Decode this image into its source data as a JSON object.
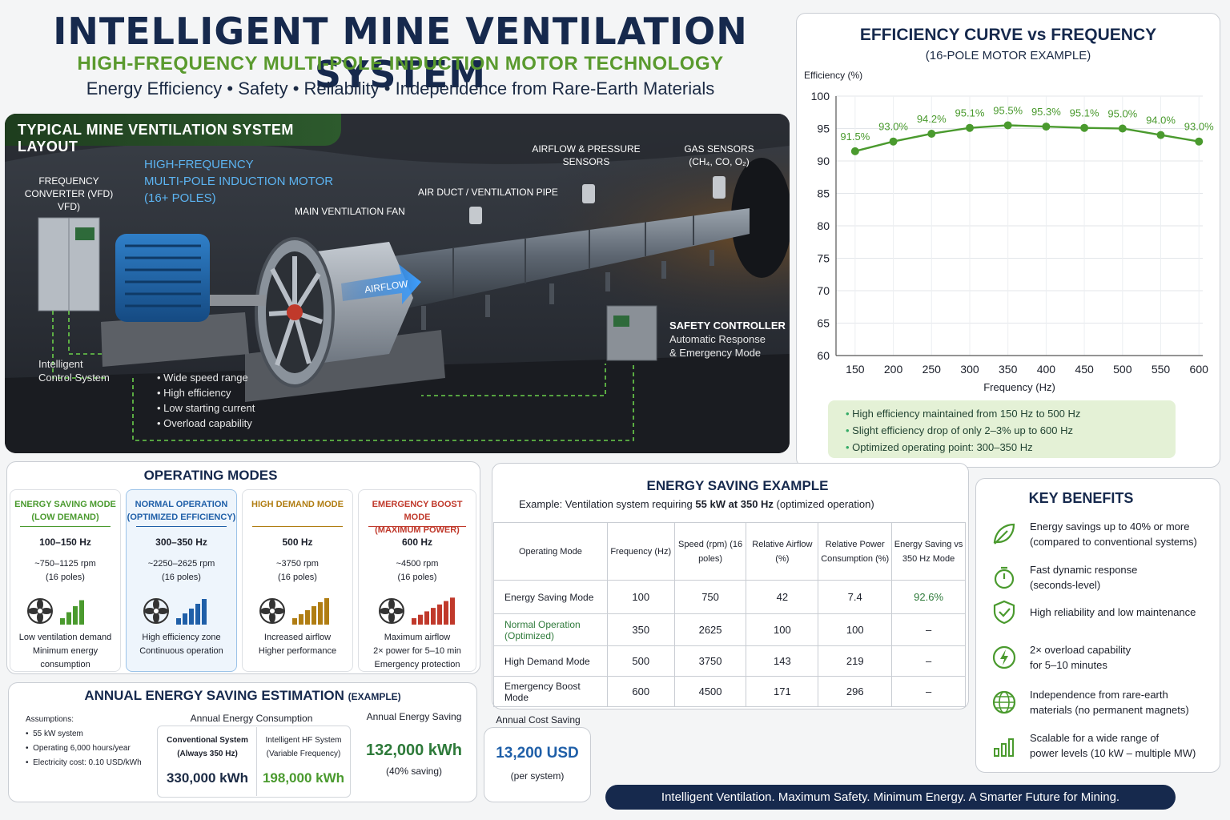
{
  "header": {
    "title": "INTELLIGENT MINE VENTILATION SYSTEM",
    "subtitle": "HIGH-FREQUENCY MULTI-POLE INDUCTION MOTOR TECHNOLOGY",
    "tagline": "Energy Efficiency • Safety • Reliability • Independence from Rare-Earth Materials"
  },
  "layout_panel": {
    "title": "TYPICAL MINE VENTILATION SYSTEM LAYOUT",
    "vfd_label": [
      "FREQUENCY",
      "CONVERTER (VFD)",
      "VFD)"
    ],
    "motor_label": [
      "HIGH-FREQUENCY",
      "MULTI-POLE INDUCTION MOTOR",
      "(16+ POLES)"
    ],
    "fan_label": "MAIN VENTILATION FAN",
    "duct_label": "AIR DUCT / VENTILATION PIPE",
    "airflow_sensors": [
      "AIRFLOW & PRESSURE",
      "SENSORS"
    ],
    "gas_sensors": [
      "GAS SENSORS",
      "(CH₄, CO, O₂)"
    ],
    "airflow_arrow": "AIRFLOW",
    "safety_controller": [
      "SAFETY CONTROLLER",
      "Automatic Response",
      "& Emergency Mode"
    ],
    "control_system": [
      "Intelligent",
      "Control System"
    ],
    "features": [
      "Wide speed range",
      "High efficiency",
      "Low starting current",
      "Overload capability"
    ]
  },
  "chart": {
    "title": "EFFICIENCY CURVE vs FREQUENCY",
    "subtitle": "(16-POLE MOTOR EXAMPLE)",
    "notes": [
      "High efficiency maintained from 150 Hz to 500 Hz",
      "Slight efficiency drop of only 2–3% up to 600 Hz",
      "Optimized operating point: 300–350 Hz"
    ]
  },
  "chart_data": {
    "type": "line",
    "xlabel": "Frequency (Hz)",
    "ylabel": "Efficiency (%)",
    "x": [
      150,
      200,
      250,
      300,
      350,
      400,
      450,
      500,
      550,
      600
    ],
    "series": [
      {
        "values": [
          91.5,
          93.0,
          94.2,
          95.1,
          95.5,
          95.3,
          95.1,
          95.0,
          94.0,
          93.0
        ]
      }
    ],
    "data_labels": [
      "91.5%",
      "93.0%",
      "94.2%",
      "95.1%",
      "95.5%",
      "95.3%",
      "95.1%",
      "95.0%",
      "94.0%",
      "93.0%"
    ],
    "x_ticks": [
      "150",
      "200",
      "250",
      "300",
      "350",
      "400",
      "450",
      "500",
      "550",
      "600"
    ],
    "y_ticks": [
      "100",
      "95",
      "90",
      "85",
      "80",
      "75",
      "70",
      "65",
      "60"
    ],
    "ylim": [
      60,
      100
    ],
    "xlim": [
      150,
      600
    ],
    "grid": true,
    "color": "#4a9a2e"
  },
  "modes": {
    "title": "OPERATING MODES",
    "items": [
      {
        "title": [
          "ENERGY SAVING MODE",
          "(LOW DEMAND)"
        ],
        "freq": "100–150 Hz",
        "rpm": [
          "~750–1125 rpm",
          "(16 poles)"
        ],
        "desc": [
          "Low ventilation demand",
          "Minimum energy",
          "consumption"
        ],
        "color": "#4a9a2e",
        "bg": "#fff"
      },
      {
        "title": [
          "NORMAL OPERATION",
          "(OPTIMIZED EFFICIENCY)"
        ],
        "freq": "300–350 Hz",
        "rpm": [
          "~2250–2625 rpm",
          "(16 poles)"
        ],
        "desc": [
          "High efficiency zone",
          "Continuous operation"
        ],
        "color": "#1f5fa8",
        "bg": "#eef5fc"
      },
      {
        "title": [
          "HIGH DEMAND MODE",
          ""
        ],
        "freq": "500 Hz",
        "rpm": [
          "~3750 rpm",
          "(16 poles)"
        ],
        "desc": [
          "Increased airflow",
          "Higher performance"
        ],
        "color": "#b07d12",
        "bg": "#fff"
      },
      {
        "title": [
          "EMERGENCY BOOST MODE",
          "(MAXIMUM POWER)"
        ],
        "freq": "600 Hz",
        "rpm": [
          "~4500 rpm",
          "(16 poles)"
        ],
        "desc": [
          "Maximum airflow",
          "2× power for 5–10 min",
          "Emergency protection"
        ],
        "color": "#c0392b",
        "bg": "#fff"
      }
    ]
  },
  "annual": {
    "title": "ANNUAL ENERGY SAVING ESTIMATION",
    "title_suffix": "(EXAMPLE)",
    "assumptions_label": "Assumptions:",
    "assumptions": [
      "55 kW system",
      "Operating 6,000 hours/year",
      "Electricity cost: 0.10 USD/kWh"
    ],
    "consumption_label": "Annual Energy Consumption",
    "conventional_label": [
      "Conventional System",
      "(Always 350 Hz)"
    ],
    "conventional_value": "330,000 kWh",
    "intelligent_label": [
      "Intelligent HF System",
      "(Variable Frequency)"
    ],
    "intelligent_value": "198,000 kWh",
    "saving_label": "Annual Energy Saving",
    "saving_value": "132,000 kWh",
    "saving_pct": "(40% saving)",
    "cost_label": "Annual Cost Saving",
    "cost_value": "13,200 USD",
    "cost_sub": "(per system)"
  },
  "example": {
    "title": "ENERGY SAVING EXAMPLE",
    "desc_pre": "Example: Ventilation system requiring ",
    "desc_bold": "55 kW at 350 Hz",
    "desc_post": " (optimized operation)",
    "headers": [
      "Operating Mode",
      "Frequency (Hz)",
      "Speed (rpm) (16 poles)",
      "Relative Airflow (%)",
      "Relative Power Consumption (%)",
      "Energy Saving vs 350 Hz Mode"
    ],
    "rows": [
      [
        "Energy Saving Mode",
        "100",
        "750",
        "42",
        "7.4",
        "92.6%"
      ],
      [
        "Normal Operation (Optimized)",
        "350",
        "2625",
        "100",
        "100",
        "–"
      ],
      [
        "High Demand Mode",
        "500",
        "3750",
        "143",
        "219",
        "–"
      ],
      [
        "Emergency Boost Mode",
        "600",
        "4500",
        "171",
        "296",
        "–"
      ]
    ]
  },
  "benefits": {
    "title": "KEY BENEFITS",
    "items": [
      {
        "icon": "leaf-icon",
        "text": [
          "Energy savings up to 40% or more",
          "(compared to conventional systems)"
        ]
      },
      {
        "icon": "stopwatch-icon",
        "text": [
          "Fast dynamic response",
          "(seconds-level)"
        ]
      },
      {
        "icon": "shield-check-icon",
        "text": [
          "High reliability and low maintenance",
          ""
        ]
      },
      {
        "icon": "lightning-icon",
        "text": [
          "2× overload capability",
          "for 5–10 minutes"
        ]
      },
      {
        "icon": "globe-icon",
        "text": [
          "Independence from rare-earth",
          "materials (no permanent magnets)"
        ]
      },
      {
        "icon": "bar-growth-icon",
        "text": [
          "Scalable for a wide range of",
          "power levels (10 kW – multiple MW)"
        ]
      }
    ]
  },
  "footer": "Intelligent Ventilation. Maximum Safety. Minimum Energy. A Smarter Future for Mining."
}
